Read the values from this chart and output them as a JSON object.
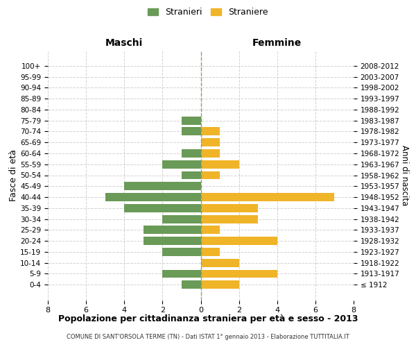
{
  "age_groups": [
    "100+",
    "95-99",
    "90-94",
    "85-89",
    "80-84",
    "75-79",
    "70-74",
    "65-69",
    "60-64",
    "55-59",
    "50-54",
    "45-49",
    "40-44",
    "35-39",
    "30-34",
    "25-29",
    "20-24",
    "15-19",
    "10-14",
    "5-9",
    "0-4"
  ],
  "birth_years": [
    "≤ 1912",
    "1913-1917",
    "1918-1922",
    "1923-1927",
    "1928-1932",
    "1933-1937",
    "1938-1942",
    "1943-1947",
    "1948-1952",
    "1953-1957",
    "1958-1962",
    "1963-1967",
    "1968-1972",
    "1973-1977",
    "1978-1982",
    "1983-1987",
    "1988-1992",
    "1993-1997",
    "1998-2002",
    "2003-2007",
    "2008-2012"
  ],
  "maschi": [
    0,
    0,
    0,
    0,
    0,
    1,
    1,
    0,
    1,
    2,
    1,
    4,
    5,
    4,
    2,
    3,
    3,
    2,
    0,
    2,
    1
  ],
  "femmine": [
    0,
    0,
    0,
    0,
    0,
    0,
    1,
    1,
    1,
    2,
    1,
    0,
    7,
    3,
    3,
    1,
    4,
    1,
    2,
    4,
    2
  ],
  "maschi_color": "#6a9a57",
  "femmine_color": "#f0b429",
  "title": "Popolazione per cittadinanza straniera per età e sesso - 2013",
  "subtitle": "COMUNE DI SANT'ORSOLA TERME (TN) - Dati ISTAT 1° gennaio 2013 - Elaborazione TUTTITALIA.IT",
  "legend_maschi": "Stranieri",
  "legend_femmine": "Straniere",
  "header_left": "Maschi",
  "header_right": "Femmine",
  "ylabel": "Fasce di età",
  "ylabel_right": "Anni di nascita",
  "xlim": 8,
  "background_color": "#ffffff",
  "grid_color": "#cccccc",
  "center_line_color": "#999966"
}
